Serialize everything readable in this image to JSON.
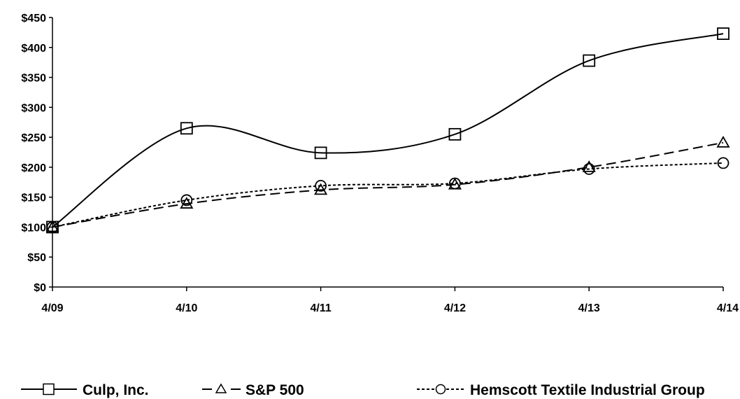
{
  "chart_data": {
    "type": "line",
    "categories": [
      "4/09",
      "4/10",
      "4/11",
      "4/12",
      "4/13",
      "4/14"
    ],
    "y_ticks": [
      "$0",
      "$50",
      "$100",
      "$150",
      "$200",
      "$250",
      "$300",
      "$350",
      "$400",
      "$450"
    ],
    "ylim": [
      0,
      450
    ],
    "series": [
      {
        "name": "Culp, Inc.",
        "values": [
          100,
          265,
          224,
          255,
          378,
          423
        ],
        "marker": "square",
        "dash": "solid"
      },
      {
        "name": "S&P 500",
        "values": [
          100,
          139,
          162,
          171,
          200,
          241
        ],
        "marker": "triangle",
        "dash": "long-dash"
      },
      {
        "name": "Hemscott Textile Industrial Group",
        "values": [
          100,
          145,
          169,
          173,
          197,
          207
        ],
        "marker": "circle",
        "dash": "short-dash"
      }
    ],
    "grid": false,
    "legend_position": "bottom"
  }
}
